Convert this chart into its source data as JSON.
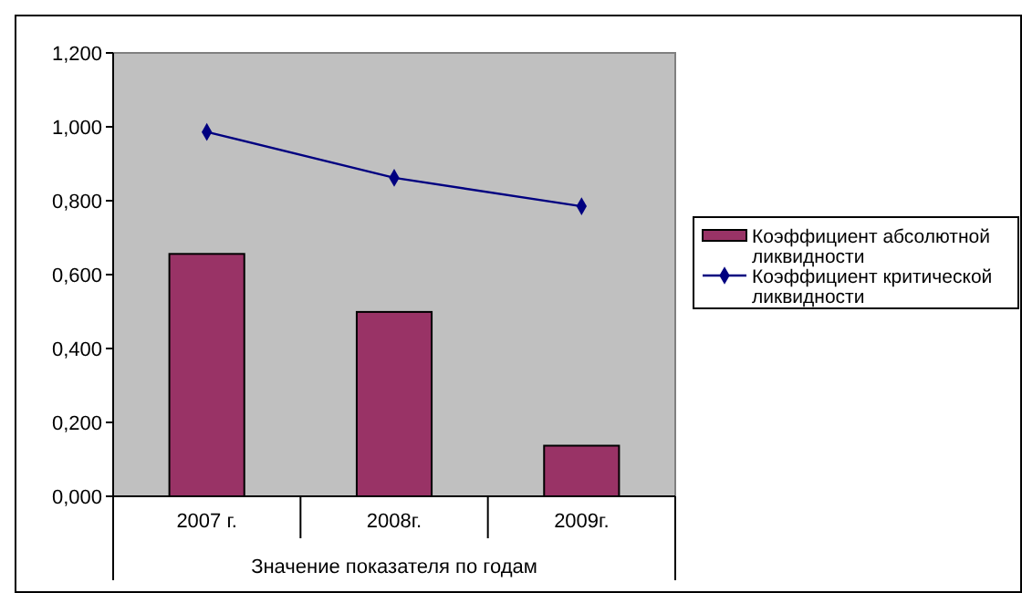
{
  "chart_data": {
    "type": "bar",
    "categories": [
      "2007 г.",
      "2008г.",
      "2009г."
    ],
    "xlabel": "Значение показателя по годам",
    "series": [
      {
        "name": "Коэффициент абсолютной ликвидности",
        "color": "#993366",
        "values": [
          0.656,
          0.499,
          0.137
        ]
      },
      {
        "name": "Коэффициент критической ликвидности",
        "type": "line",
        "color": "#000080",
        "marker": "diamond",
        "values": [
          0.986,
          0.862,
          0.785
        ]
      }
    ],
    "ylim": [
      0,
      1.2
    ],
    "yticks": [
      {
        "value": 0,
        "label": "0,000"
      },
      {
        "value": 0.2,
        "label": "0,200"
      },
      {
        "value": 0.4,
        "label": "0,400"
      },
      {
        "value": 0.6,
        "label": "0,600"
      },
      {
        "value": 0.8,
        "label": "0,800"
      },
      {
        "value": 1,
        "label": "1,000"
      },
      {
        "value": 1.2,
        "label": "1,200"
      }
    ],
    "grid": false,
    "legend": "right"
  }
}
